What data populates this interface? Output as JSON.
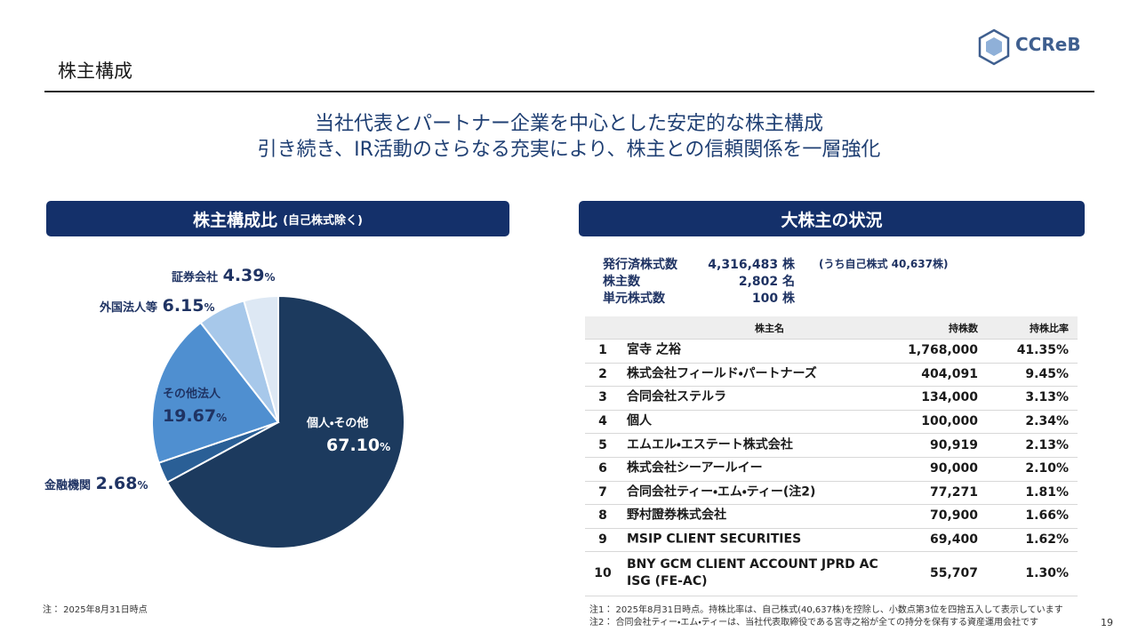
{
  "header": {
    "title": "株主構成",
    "logo": "CCReB"
  },
  "headline": [
    "当社代表とパートナー企業を中心とした安定的な株主構成",
    "引き続き、IR活動のさらなる充実により、株主との信頼関係を一層強化"
  ],
  "chart_data": {
    "type": "pie",
    "title": "株主構成比",
    "subtitle": "(自己株式除く)",
    "categories": [
      "個人・その他",
      "金融機関",
      "その他法人",
      "外国法人等",
      "証券会社"
    ],
    "values": [
      67.1,
      2.68,
      19.67,
      6.15,
      4.39
    ],
    "value_labels": [
      "67.10",
      "2.68",
      "19.67",
      "6.15",
      "4.39"
    ],
    "unit": "%",
    "colors": [
      "#1c3a5e",
      "#2a5f96",
      "#4f8fd0",
      "#a7c8ea",
      "#dde8f4"
    ]
  },
  "holders": {
    "title": "大株主の状況",
    "info": [
      [
        "発行済株式数",
        "4,316,483 株"
      ],
      [
        "株主数",
        "2,802 名"
      ],
      [
        "単元株式数",
        "100 株"
      ]
    ],
    "treasury_note": "(うち自己株式 40,637株)",
    "table": {
      "header": [
        "株主名",
        "持株数",
        "持株比率"
      ],
      "rows": [
        [
          "1",
          "宮寺 之裕",
          "1,768,000",
          "41.35%"
        ],
        [
          "2",
          "株式会社フィールド・パートナーズ",
          "404,091",
          "9.45%"
        ],
        [
          "3",
          "合同会社ステルラ",
          "134,000",
          "3.13%"
        ],
        [
          "4",
          "個人",
          "100,000",
          "2.34%"
        ],
        [
          "5",
          "エムエル・エステート株式会社",
          "90,919",
          "2.13%"
        ],
        [
          "6",
          "株式会社シーアールイー",
          "90,000",
          "2.10%"
        ],
        [
          "7",
          "合同会社ティー・エム・ティー(注2)",
          "77,271",
          "1.81%"
        ],
        [
          "8",
          "野村證券株式会社",
          "70,900",
          "1.66%"
        ],
        [
          "9",
          "MSIP CLIENT SECURITIES",
          "69,400",
          "1.62%"
        ],
        [
          "10",
          "BNY GCM CLIENT ACCOUNT JPRD AC ISG (FE-AC)",
          "55,707",
          "1.30%"
        ]
      ]
    }
  },
  "footnotes": {
    "left": "注： 2025年8月31日時点",
    "right": [
      "注1： 2025年8月31日時点。持株比率は、自己株式(40,637株)を控除し、小数点第3位を四捨五入して表示しています",
      "注2： 合同会社ティー・エム・ティーは、当社代表取締役である宮寺之裕が全ての持分を保有する資産運用会社です"
    ]
  },
  "page_number": "19"
}
